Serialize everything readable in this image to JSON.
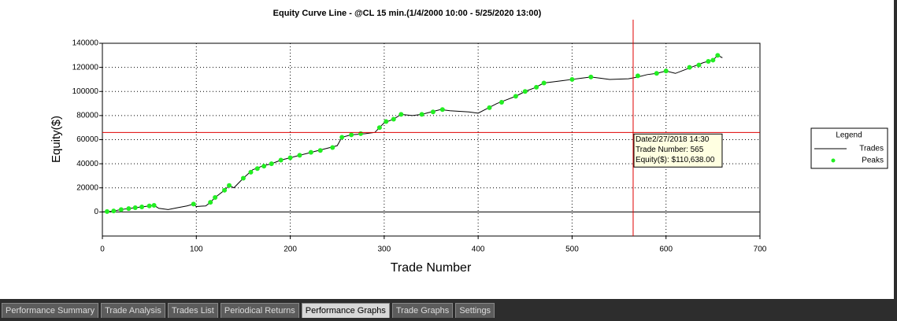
{
  "chart_data": {
    "type": "line",
    "title": "Equity Curve Line - @CL 15 min.(1/4/2000 10:00 - 5/25/2020 13:00)",
    "x_label": "Trade Number",
    "y_label": "Equity($)",
    "xlim": [
      0,
      700
    ],
    "xticks": [
      0,
      100,
      200,
      300,
      400,
      500,
      600,
      700
    ],
    "ylim": [
      -20000,
      140000
    ],
    "yticks": [
      0,
      20000,
      40000,
      60000,
      80000,
      100000,
      120000,
      140000
    ],
    "grid": true,
    "legend_title": "Legend",
    "legend": "right",
    "series": [
      {
        "name": "Trades",
        "color": "#000000",
        "style": "line",
        "x": [
          0,
          10,
          20,
          30,
          40,
          50,
          55,
          60,
          70,
          80,
          90,
          97,
          100,
          110,
          115,
          120,
          130,
          135,
          140,
          150,
          160,
          170,
          180,
          190,
          200,
          210,
          220,
          230,
          240,
          250,
          255,
          265,
          280,
          290,
          295,
          300,
          310,
          318,
          330,
          340,
          350,
          360,
          370,
          390,
          400,
          410,
          420,
          430,
          440,
          450,
          460,
          470,
          480,
          490,
          500,
          510,
          520,
          530,
          540,
          560,
          570,
          580,
          590,
          600,
          610,
          620,
          630,
          640,
          650,
          655,
          660
        ],
        "values": [
          0,
          500,
          2000,
          3000,
          4000,
          5000,
          5500,
          3000,
          2000,
          3500,
          5000,
          6500,
          4500,
          5000,
          8000,
          12000,
          18000,
          22000,
          20000,
          28000,
          35000,
          38000,
          40000,
          43000,
          45000,
          47000,
          49000,
          51000,
          53000,
          55000,
          62000,
          64000,
          65000,
          66000,
          70000,
          74000,
          77000,
          81000,
          80000,
          81000,
          83000,
          85000,
          84000,
          83000,
          82000,
          86000,
          90000,
          93000,
          96000,
          100000,
          103000,
          107000,
          108000,
          109000,
          110000,
          111000,
          112000,
          111000,
          110000,
          110500,
          112000,
          114000,
          115000,
          117000,
          115000,
          118000,
          121000,
          124000,
          126000,
          130000,
          128000
        ]
      },
      {
        "name": "Peaks",
        "color": "#22ee22",
        "style": "points",
        "x": [
          5,
          12,
          20,
          28,
          35,
          42,
          50,
          55,
          97,
          115,
          120,
          130,
          135,
          150,
          158,
          165,
          172,
          180,
          190,
          200,
          210,
          222,
          232,
          245,
          255,
          265,
          275,
          295,
          302,
          310,
          318,
          340,
          352,
          362,
          412,
          425,
          440,
          450,
          462,
          470,
          500,
          520,
          570,
          590,
          600,
          625,
          635,
          645,
          650,
          655
        ],
        "values": [
          300,
          800,
          2000,
          2800,
          3500,
          4200,
          5000,
          5500,
          6500,
          8000,
          12000,
          18000,
          22000,
          28000,
          33000,
          36000,
          38000,
          40000,
          43000,
          45000,
          47000,
          49500,
          51000,
          53500,
          62000,
          64000,
          65000,
          70000,
          75000,
          77000,
          81000,
          81000,
          83000,
          85000,
          86500,
          91000,
          96000,
          100000,
          103500,
          107000,
          110000,
          112000,
          113000,
          115000,
          117000,
          120000,
          122000,
          125000,
          126000,
          130000
        ]
      }
    ],
    "crosshair": {
      "x": 565,
      "y": 66000
    },
    "tooltip": [
      "Date2/27/2018 14:30",
      "Trade Number: 565",
      "Equity($): $110,638.00"
    ]
  },
  "tabs": [
    "Performance Summary",
    "Trade Analysis",
    "Trades List",
    "Periodical Returns",
    "Performance Graphs",
    "Trade Graphs",
    "Settings"
  ],
  "active_tab": 4
}
